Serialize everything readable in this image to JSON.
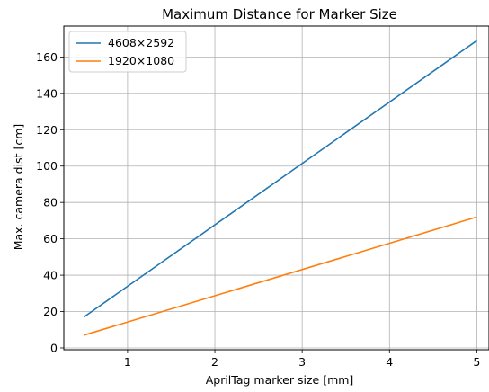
{
  "chart_data": {
    "type": "line",
    "title": "Maximum Distance for Marker Size",
    "xlabel": "AprilTag marker size [mm]",
    "ylabel": "Max. camera dist [cm]",
    "xlim": [
      0.27,
      5.14
    ],
    "ylim": [
      -1,
      177
    ],
    "xticks": [
      1,
      2,
      3,
      4,
      5
    ],
    "yticks": [
      0,
      20,
      40,
      60,
      80,
      100,
      120,
      140,
      160
    ],
    "grid": true,
    "legend_position": "top-left",
    "series": [
      {
        "name": "4608×2592",
        "color": "#1f77b4",
        "x": [
          0.5,
          5
        ],
        "y": [
          17,
          169
        ]
      },
      {
        "name": "1920×1080",
        "color": "#ff7f0e",
        "x": [
          0.5,
          5
        ],
        "y": [
          7,
          72
        ]
      }
    ]
  }
}
